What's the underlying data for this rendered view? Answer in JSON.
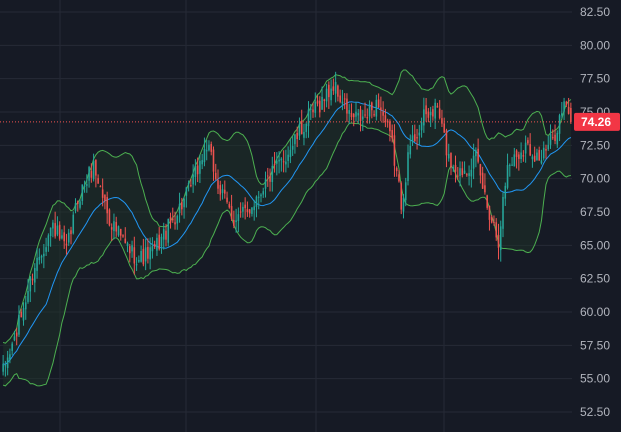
{
  "chart_data": {
    "type": "candlestick",
    "y_axis": {
      "position": "right",
      "ylim": [
        51.0,
        83.4
      ],
      "ticks": [
        "52.50",
        "55.00",
        "57.50",
        "60.00",
        "62.50",
        "65.00",
        "67.50",
        "70.00",
        "72.50",
        "75.00",
        "77.50",
        "80.00",
        "82.50"
      ]
    },
    "last_price": 74.26,
    "last_price_label": "74.26",
    "grid": true,
    "colors": {
      "background": "#161a25",
      "grid": "#262a36",
      "up": "#26a69a",
      "down": "#ef5350",
      "basis": "#2196f3",
      "bands": "#4caf50",
      "band_fill": "#1e3529",
      "tick_text": "#b2b5be",
      "price_line": "#ef5350",
      "price_tag": "#f23645"
    },
    "indicators": [
      {
        "type": "bollinger_bands",
        "basis": "sma",
        "upper": "green",
        "lower": "green",
        "basis_color": "blue"
      }
    ],
    "anchors": [
      [
        0,
        55.5
      ],
      [
        6,
        58.5
      ],
      [
        14,
        63.5
      ],
      [
        22,
        66.5
      ],
      [
        28,
        64.5
      ],
      [
        33,
        68.5
      ],
      [
        40,
        71.0
      ],
      [
        47,
        67.0
      ],
      [
        54,
        65.0
      ],
      [
        60,
        64.0
      ],
      [
        66,
        64.5
      ],
      [
        72,
        66.0
      ],
      [
        82,
        69.0
      ],
      [
        90,
        72.5
      ],
      [
        96,
        69.0
      ],
      [
        102,
        67.0
      ],
      [
        108,
        67.5
      ],
      [
        115,
        69.5
      ],
      [
        124,
        71.5
      ],
      [
        135,
        74.5
      ],
      [
        146,
        77.0
      ],
      [
        154,
        74.5
      ],
      [
        160,
        74.5
      ],
      [
        166,
        75.8
      ],
      [
        172,
        72.5
      ],
      [
        176,
        68.2
      ],
      [
        180,
        72.5
      ],
      [
        186,
        74.5
      ],
      [
        192,
        75.3
      ],
      [
        197,
        71.5
      ],
      [
        202,
        70.5
      ],
      [
        209,
        71.5
      ],
      [
        214,
        68.0
      ],
      [
        219,
        65.5
      ],
      [
        223,
        71.0
      ],
      [
        231,
        72.5
      ],
      [
        238,
        71.5
      ],
      [
        243,
        73.0
      ],
      [
        248,
        75.5
      ],
      [
        251,
        74.3
      ]
    ],
    "count": 252
  }
}
